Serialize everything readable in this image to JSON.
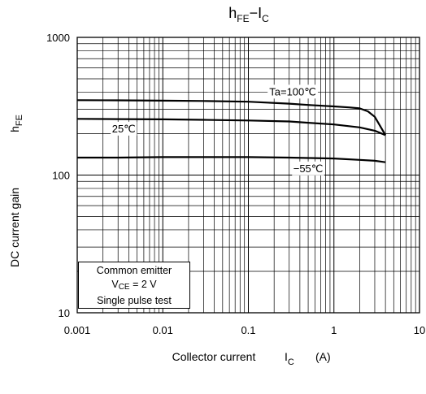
{
  "title": {
    "main": "h",
    "sub": "FE",
    "dash": "−I",
    "sub2": "C"
  },
  "xaxis": {
    "label": "Collector current",
    "symbol": "I",
    "symbol_sub": "C",
    "unit": "(A)"
  },
  "yaxis": {
    "label": "DC current gain",
    "symbol": "h",
    "symbol_sub": "FE"
  },
  "note": {
    "line1": "Common emitter",
    "line2_main": "V",
    "line2_sub": "CE",
    "line2_rest": " = 2 V",
    "line3": "Single pulse test"
  },
  "chart_data": {
    "type": "line",
    "title": "hFE−IC",
    "xlabel": "Collector current IC (A)",
    "ylabel": "DC current gain hFE",
    "xscale": "log",
    "yscale": "log",
    "xlim": [
      0.001,
      10
    ],
    "ylim": [
      10,
      1000
    ],
    "grid": true,
    "x_tick_labels": [
      "0.001",
      "0.01",
      "0.1",
      "1",
      "10"
    ],
    "y_tick_labels": [
      "10",
      "100",
      "1000"
    ],
    "series": [
      {
        "name": "Ta=100℃",
        "x": [
          0.001,
          0.003,
          0.01,
          0.03,
          0.1,
          0.3,
          0.5,
          1,
          1.5,
          2,
          2.5,
          3,
          3.5,
          4
        ],
        "y": [
          350,
          349,
          347,
          345,
          341,
          330,
          323,
          315,
          310,
          305,
          290,
          265,
          225,
          195
        ]
      },
      {
        "name": "25℃",
        "x": [
          0.001,
          0.003,
          0.01,
          0.03,
          0.1,
          0.3,
          0.5,
          1,
          2,
          3,
          4
        ],
        "y": [
          256,
          255,
          254,
          252,
          249,
          245,
          240,
          233,
          222,
          210,
          195
        ]
      },
      {
        "name": "−55℃",
        "x": [
          0.001,
          0.003,
          0.01,
          0.03,
          0.1,
          0.3,
          0.5,
          1,
          2,
          3,
          4
        ],
        "y": [
          134,
          134,
          135,
          135,
          135,
          134,
          133,
          132,
          129,
          127,
          124
        ]
      }
    ],
    "annotations": [
      "Ta=100℃",
      "25℃",
      "−55℃"
    ]
  }
}
